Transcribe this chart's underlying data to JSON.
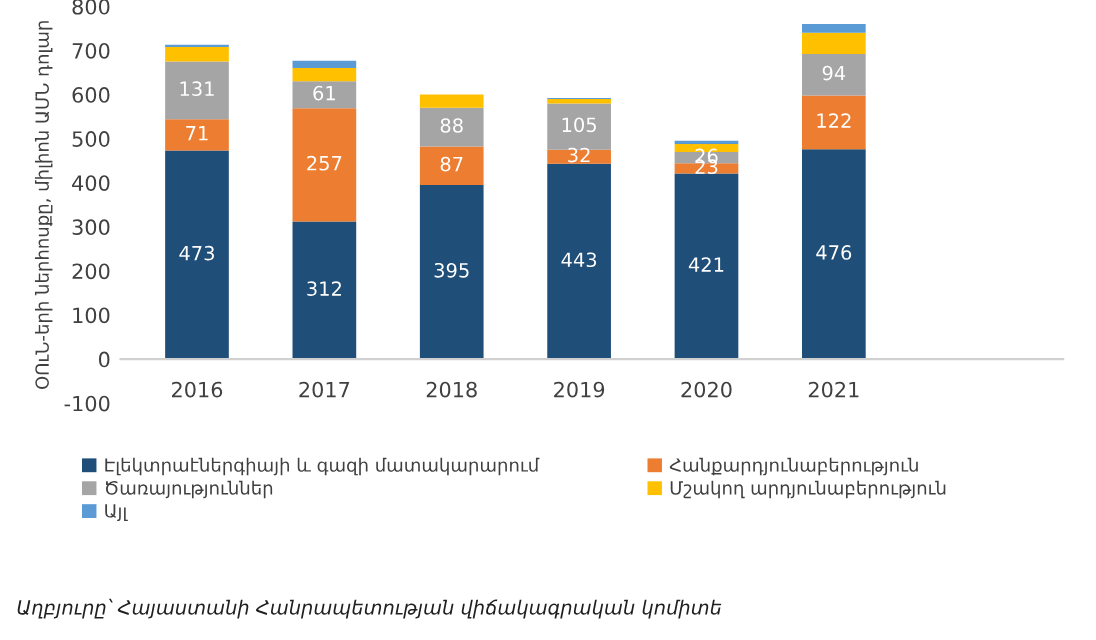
{
  "chart_data": {
    "type": "bar",
    "stacked": true,
    "ylabel": "ՕՈւՆ-երի ներհոսքը, միլիոն ԱՄՆ դոլար",
    "categories": [
      "2016",
      "2017",
      "2018",
      "2019",
      "2020",
      "2021"
    ],
    "series": [
      {
        "name": "Էլեկտրաէներգիայի և գազի մատակարարում",
        "color": "#1f4e79",
        "values": [
          473,
          312,
          395,
          443,
          421,
          476
        ],
        "value_labels": [
          "473",
          "312",
          "395",
          "443",
          "421",
          "476"
        ]
      },
      {
        "name": "Հանքարդյունաբերություն",
        "color": "#ed7d31",
        "values": [
          71,
          257,
          87,
          32,
          23,
          122
        ],
        "value_labels": [
          "71",
          "257",
          "87",
          "32",
          "23",
          "122"
        ]
      },
      {
        "name": "Ծառայություններ",
        "color": "#a5a5a5",
        "values": [
          131,
          61,
          88,
          105,
          26,
          94
        ],
        "value_labels": [
          "131",
          "61",
          "88",
          "105",
          "26",
          "94"
        ]
      },
      {
        "name": "Մշակող արդյունաբերություն",
        "color": "#ffc000",
        "values": [
          33,
          30,
          30,
          10,
          18,
          48
        ]
      },
      {
        "name": "Այլ",
        "color": "#5b9bd5",
        "values": [
          5,
          17,
          0,
          2,
          7,
          20
        ]
      }
    ],
    "ylim": [
      -100,
      800
    ],
    "yticks": [
      -100,
      0,
      100,
      200,
      300,
      400,
      500,
      600,
      700,
      800
    ],
    "grid": false,
    "legend": "bottom",
    "annotations": [
      "Աղբյուրը՝ Հայաստանի Հանրապետության վիճակագրական կոմիտե"
    ]
  }
}
